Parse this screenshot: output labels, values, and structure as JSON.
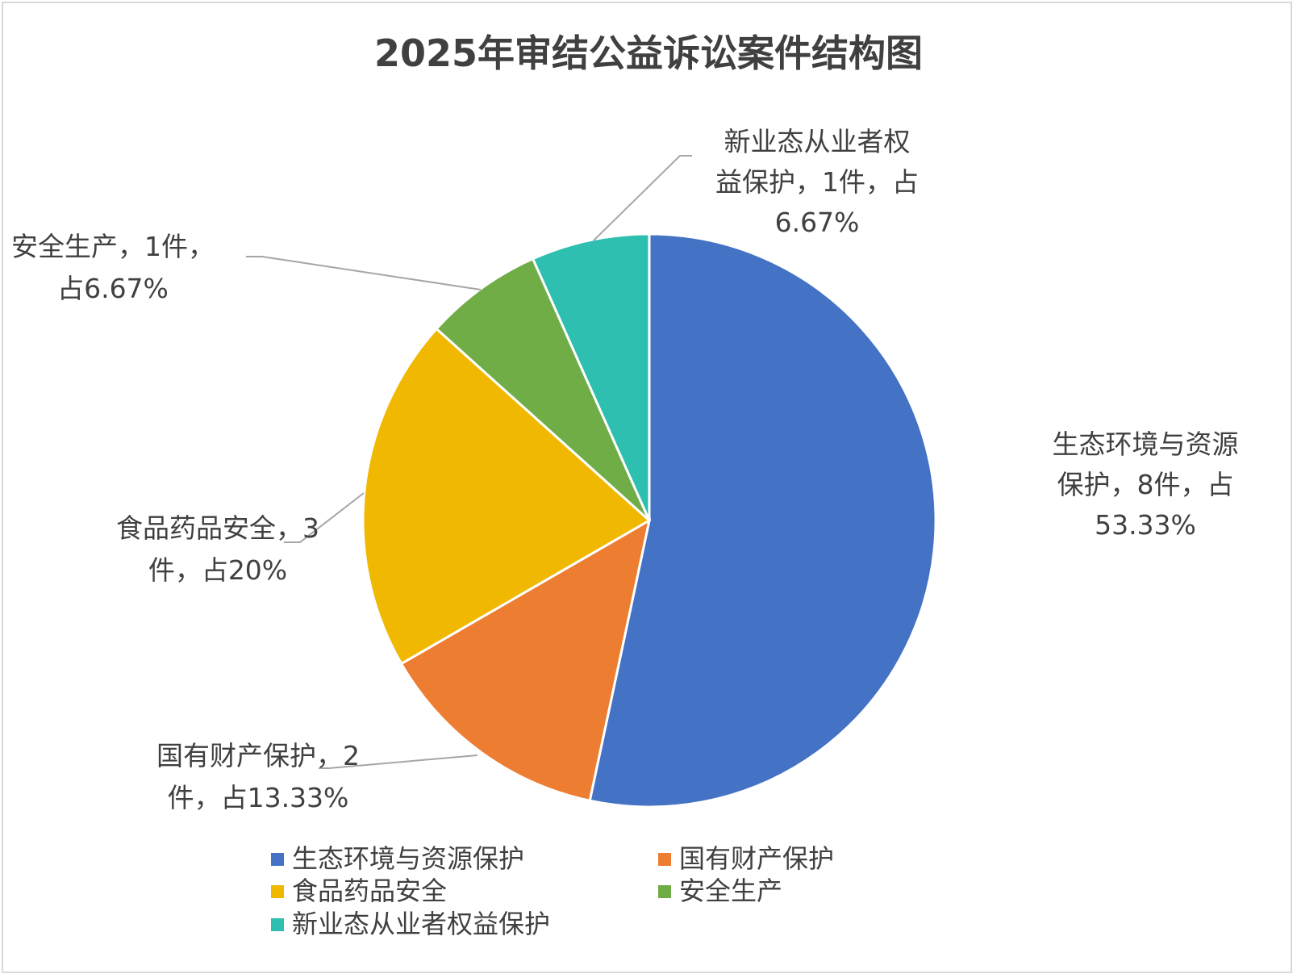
{
  "chart_data": {
    "type": "pie",
    "title": "2025年审结公益诉讼案件结构图",
    "categories": [
      "生态环境与资源保护",
      "国有财产保护",
      "食品药品安全",
      "安全生产",
      "新业态从业者权益保护"
    ],
    "values": [
      8,
      2,
      3,
      1,
      1
    ],
    "percents": [
      "53.33%",
      "13.33%",
      "20%",
      "6.67%",
      "6.67%"
    ],
    "colors": [
      "#4472C4",
      "#ED7D31",
      "#F0B800",
      "#70AD47",
      "#2EBFB0"
    ],
    "data_labels": [
      [
        "生态环境与资源",
        "保护，8件，占",
        "53.33%"
      ],
      [
        "国有财产保护，2",
        "件，占13.33%"
      ],
      [
        "食品药品安全，3",
        "件，占20%"
      ],
      [
        "安全生产，1件，",
        "占6.67%"
      ],
      [
        "新业态从业者权",
        "益保护，1件，占",
        "6.67%"
      ]
    ],
    "legend_position": "bottom"
  }
}
